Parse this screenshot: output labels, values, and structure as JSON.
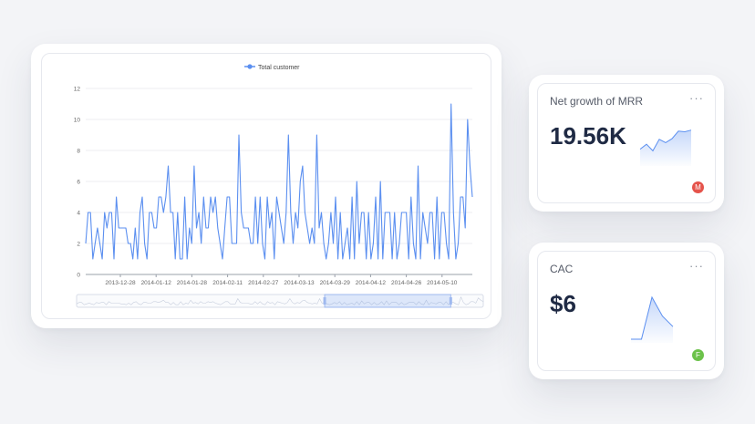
{
  "colors": {
    "series": "#5b8ff0",
    "mrr_badge": "#e5534b",
    "cac_badge": "#6cc24a",
    "grid": "#eceef2",
    "axis": "#9aa0aa"
  },
  "main_chart": {
    "legend": "Total customer",
    "chart_data": {
      "type": "line",
      "x_ticks": [
        "2013-12-28",
        "2014-01-12",
        "2014-01-28",
        "2014-02-11",
        "2014-02-27",
        "2014-03-13",
        "2014-03-29",
        "2014-04-12",
        "2014-04-26",
        "2014-05-10"
      ],
      "y_ticks": [
        "0",
        "2",
        "4",
        "6",
        "8",
        "10",
        "12"
      ],
      "ylim": [
        0,
        12
      ],
      "series": [
        {
          "name": "Total customer",
          "values": [
            2,
            4,
            4,
            1,
            2,
            3,
            2,
            1,
            4,
            3,
            4,
            4,
            1,
            5,
            3,
            3,
            3,
            3,
            2,
            2,
            1,
            3,
            1,
            4,
            5,
            2,
            1,
            4,
            4,
            3,
            3,
            5,
            5,
            4,
            5,
            7,
            4,
            4,
            1,
            4,
            1,
            1,
            5,
            1,
            3,
            2,
            7,
            3,
            4,
            2,
            5,
            3,
            3,
            5,
            4,
            5,
            3,
            2,
            1,
            3,
            5,
            5,
            2,
            2,
            2,
            9,
            4,
            3,
            3,
            3,
            2,
            2,
            5,
            2,
            5,
            2,
            1,
            5,
            3,
            4,
            1,
            5,
            4,
            3,
            2,
            4,
            9,
            4,
            2,
            4,
            3,
            6,
            7,
            4,
            3,
            2,
            3,
            2,
            9,
            3,
            4,
            2,
            1,
            2,
            4,
            2,
            5,
            1,
            4,
            1,
            2,
            3,
            1,
            5,
            1,
            6,
            2,
            4,
            4,
            1,
            4,
            1,
            2,
            5,
            1,
            6,
            1,
            4,
            4,
            4,
            1,
            4,
            1,
            2,
            4,
            4,
            4,
            1,
            5,
            2,
            1,
            7,
            1,
            4,
            3,
            2,
            4,
            4,
            1,
            5,
            1,
            4,
            4,
            2,
            1,
            11,
            4,
            1,
            2,
            5,
            5,
            3,
            10,
            7,
            5
          ]
        }
      ]
    },
    "zoom_range": [
      0.61,
      0.92
    ]
  },
  "mrr": {
    "title": "Net growth of MRR",
    "more": "···",
    "value": "19.56K",
    "badge": "M",
    "spark": [
      0.4,
      0.55,
      0.35,
      0.7,
      0.6,
      0.72,
      0.95,
      0.93,
      0.98
    ]
  },
  "cac": {
    "title": "CAC",
    "more": "···",
    "value": "$6",
    "badge": "F",
    "spark": [
      0,
      0,
      1,
      0.55,
      0.3
    ]
  }
}
